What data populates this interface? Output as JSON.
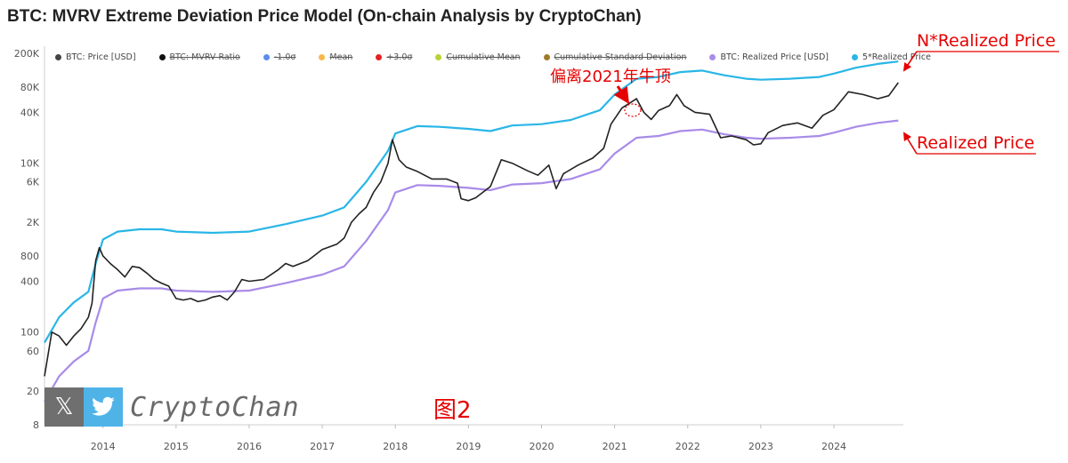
{
  "title": "BTC: MVRV Extreme Deviation Price Model (On-chain Analysis by CryptoChan)",
  "legend": [
    {
      "label": "BTC: Price [USD]",
      "color": "#444444",
      "struck": false
    },
    {
      "label": "BTC: MVRV Ratio",
      "color": "#111111",
      "struck": true
    },
    {
      "label": "-1.0σ",
      "color": "#5b8def",
      "struck": true
    },
    {
      "label": "Mean",
      "color": "#f6b94a",
      "struck": true
    },
    {
      "label": "+3.0σ",
      "color": "#e62020",
      "struck": true
    },
    {
      "label": "Cumulative Mean",
      "color": "#b5d334",
      "struck": true
    },
    {
      "label": "Cumulative Standard Deviation",
      "color": "#a07a2a",
      "struck": true
    },
    {
      "label": "BTC: Realized Price [USD]",
      "color": "#a98be8",
      "struck": false
    },
    {
      "label": "5*Realized Price",
      "color": "#29b6e6",
      "struck": false
    }
  ],
  "annotations": {
    "n_realized": "N*Realized Price",
    "realized": "Realized Price",
    "deviation": "偏离2021年牛顶",
    "figure": "图2"
  },
  "watermark": {
    "x_glyph": "𝕏",
    "name": "CryptoChan",
    "twitter_icon": "twitter-bird-icon"
  },
  "chart_data": {
    "type": "line",
    "y_scale": "log",
    "ylim": [
      8,
      200000
    ],
    "yticks": [
      8,
      20,
      60,
      100,
      400,
      800,
      2000,
      6000,
      10000,
      40000,
      80000,
      200000
    ],
    "ytick_labels": [
      "8",
      "20",
      "60",
      "100",
      "400",
      "800",
      "2K",
      "6K",
      "10K",
      "40K",
      "80K",
      "200K"
    ],
    "xlim": [
      2013.2,
      2024.95
    ],
    "xticks": [
      2014,
      2015,
      2016,
      2017,
      2018,
      2019,
      2020,
      2021,
      2022,
      2023,
      2024
    ],
    "xtick_labels": [
      "2014",
      "2015",
      "2016",
      "2017",
      "2018",
      "2019",
      "2020",
      "2021",
      "2022",
      "2023",
      "2024"
    ],
    "series": [
      {
        "name": "BTC: Price [USD]",
        "color": "#222222",
        "points": [
          [
            2013.2,
            30
          ],
          [
            2013.3,
            100
          ],
          [
            2013.4,
            90
          ],
          [
            2013.5,
            70
          ],
          [
            2013.6,
            90
          ],
          [
            2013.7,
            110
          ],
          [
            2013.8,
            150
          ],
          [
            2013.85,
            220
          ],
          [
            2013.9,
            700
          ],
          [
            2013.95,
            1000
          ],
          [
            2014.0,
            800
          ],
          [
            2014.1,
            650
          ],
          [
            2014.2,
            550
          ],
          [
            2014.3,
            450
          ],
          [
            2014.4,
            600
          ],
          [
            2014.5,
            580
          ],
          [
            2014.6,
            500
          ],
          [
            2014.7,
            420
          ],
          [
            2014.8,
            380
          ],
          [
            2014.9,
            350
          ],
          [
            2015.0,
            250
          ],
          [
            2015.1,
            240
          ],
          [
            2015.2,
            250
          ],
          [
            2015.3,
            230
          ],
          [
            2015.4,
            240
          ],
          [
            2015.5,
            260
          ],
          [
            2015.6,
            270
          ],
          [
            2015.7,
            240
          ],
          [
            2015.8,
            300
          ],
          [
            2015.9,
            420
          ],
          [
            2016.0,
            400
          ],
          [
            2016.2,
            420
          ],
          [
            2016.4,
            550
          ],
          [
            2016.5,
            650
          ],
          [
            2016.6,
            600
          ],
          [
            2016.8,
            700
          ],
          [
            2017.0,
            950
          ],
          [
            2017.2,
            1100
          ],
          [
            2017.3,
            1300
          ],
          [
            2017.4,
            2000
          ],
          [
            2017.5,
            2500
          ],
          [
            2017.6,
            3000
          ],
          [
            2017.7,
            4500
          ],
          [
            2017.8,
            6000
          ],
          [
            2017.9,
            10000
          ],
          [
            2017.96,
            19000
          ],
          [
            2018.05,
            11000
          ],
          [
            2018.15,
            9000
          ],
          [
            2018.3,
            8000
          ],
          [
            2018.5,
            6500
          ],
          [
            2018.7,
            6500
          ],
          [
            2018.85,
            5800
          ],
          [
            2018.9,
            3800
          ],
          [
            2019.0,
            3600
          ],
          [
            2019.1,
            3900
          ],
          [
            2019.3,
            5300
          ],
          [
            2019.45,
            11000
          ],
          [
            2019.6,
            10000
          ],
          [
            2019.8,
            8200
          ],
          [
            2019.95,
            7200
          ],
          [
            2020.1,
            9500
          ],
          [
            2020.2,
            5000
          ],
          [
            2020.3,
            7500
          ],
          [
            2020.5,
            9500
          ],
          [
            2020.7,
            11500
          ],
          [
            2020.85,
            15000
          ],
          [
            2020.95,
            29000
          ],
          [
            2021.1,
            45000
          ],
          [
            2021.3,
            58000
          ],
          [
            2021.4,
            40000
          ],
          [
            2021.5,
            33000
          ],
          [
            2021.6,
            42000
          ],
          [
            2021.75,
            48000
          ],
          [
            2021.85,
            65000
          ],
          [
            2021.95,
            48000
          ],
          [
            2022.1,
            40000
          ],
          [
            2022.3,
            38000
          ],
          [
            2022.45,
            20000
          ],
          [
            2022.6,
            21000
          ],
          [
            2022.8,
            19000
          ],
          [
            2022.9,
            16500
          ],
          [
            2023.0,
            17000
          ],
          [
            2023.1,
            23000
          ],
          [
            2023.3,
            28000
          ],
          [
            2023.5,
            30000
          ],
          [
            2023.7,
            26000
          ],
          [
            2023.85,
            37000
          ],
          [
            2024.0,
            43000
          ],
          [
            2024.2,
            70000
          ],
          [
            2024.4,
            65000
          ],
          [
            2024.6,
            58000
          ],
          [
            2024.75,
            63000
          ],
          [
            2024.88,
            90000
          ]
        ]
      },
      {
        "name": "BTC: Realized Price [USD]",
        "color": "#a98be8",
        "points": [
          [
            2013.2,
            15
          ],
          [
            2013.4,
            30
          ],
          [
            2013.6,
            45
          ],
          [
            2013.8,
            60
          ],
          [
            2013.9,
            130
          ],
          [
            2014.0,
            250
          ],
          [
            2014.2,
            310
          ],
          [
            2014.5,
            330
          ],
          [
            2014.8,
            330
          ],
          [
            2015.0,
            310
          ],
          [
            2015.5,
            300
          ],
          [
            2016.0,
            310
          ],
          [
            2016.5,
            380
          ],
          [
            2017.0,
            480
          ],
          [
            2017.3,
            600
          ],
          [
            2017.6,
            1200
          ],
          [
            2017.9,
            2800
          ],
          [
            2018.0,
            4500
          ],
          [
            2018.3,
            5500
          ],
          [
            2018.6,
            5400
          ],
          [
            2019.0,
            5100
          ],
          [
            2019.3,
            4800
          ],
          [
            2019.6,
            5600
          ],
          [
            2020.0,
            5800
          ],
          [
            2020.4,
            6500
          ],
          [
            2020.8,
            8500
          ],
          [
            2021.0,
            13000
          ],
          [
            2021.3,
            20000
          ],
          [
            2021.6,
            21000
          ],
          [
            2021.9,
            24000
          ],
          [
            2022.2,
            25000
          ],
          [
            2022.5,
            22000
          ],
          [
            2022.8,
            20000
          ],
          [
            2023.0,
            19500
          ],
          [
            2023.4,
            20000
          ],
          [
            2023.8,
            21000
          ],
          [
            2024.0,
            23000
          ],
          [
            2024.3,
            27000
          ],
          [
            2024.6,
            30000
          ],
          [
            2024.88,
            32000
          ]
        ]
      },
      {
        "name": "5*Realized Price",
        "color": "#29b6e6",
        "points": [
          [
            2013.2,
            75
          ],
          [
            2013.4,
            150
          ],
          [
            2013.6,
            225
          ],
          [
            2013.8,
            300
          ],
          [
            2013.9,
            650
          ],
          [
            2014.0,
            1250
          ],
          [
            2014.2,
            1550
          ],
          [
            2014.5,
            1650
          ],
          [
            2014.8,
            1650
          ],
          [
            2015.0,
            1550
          ],
          [
            2015.5,
            1500
          ],
          [
            2016.0,
            1550
          ],
          [
            2016.5,
            1900
          ],
          [
            2017.0,
            2400
          ],
          [
            2017.3,
            3000
          ],
          [
            2017.6,
            6000
          ],
          [
            2017.9,
            14000
          ],
          [
            2018.0,
            22500
          ],
          [
            2018.3,
            27500
          ],
          [
            2018.6,
            27000
          ],
          [
            2019.0,
            25500
          ],
          [
            2019.3,
            24000
          ],
          [
            2019.6,
            28000
          ],
          [
            2020.0,
            29000
          ],
          [
            2020.4,
            32500
          ],
          [
            2020.8,
            42500
          ],
          [
            2021.0,
            65000
          ],
          [
            2021.3,
            100000
          ],
          [
            2021.6,
            105000
          ],
          [
            2021.9,
            120000
          ],
          [
            2022.2,
            125000
          ],
          [
            2022.5,
            110000
          ],
          [
            2022.8,
            100000
          ],
          [
            2023.0,
            97500
          ],
          [
            2023.4,
            100000
          ],
          [
            2023.8,
            105000
          ],
          [
            2024.0,
            115000
          ],
          [
            2024.3,
            135000
          ],
          [
            2024.6,
            150000
          ],
          [
            2024.88,
            160000
          ]
        ]
      }
    ]
  }
}
